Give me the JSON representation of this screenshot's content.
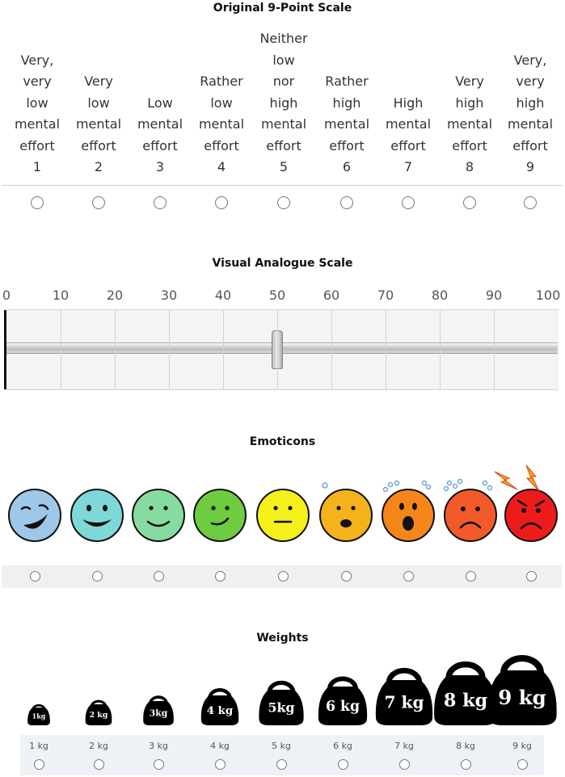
{
  "titles": {
    "scale9": "Original 9-Point Scale",
    "vas": "Visual Analogue Scale",
    "emoticons": "Emoticons",
    "weights": "Weights"
  },
  "scale9": {
    "items": [
      {
        "lines": [
          "Very,",
          "very",
          "low",
          "mental",
          "effort"
        ],
        "number": "1"
      },
      {
        "lines": [
          "Very",
          "low",
          "mental",
          "effort"
        ],
        "number": "2"
      },
      {
        "lines": [
          "Low",
          "mental",
          "effort"
        ],
        "number": "3"
      },
      {
        "lines": [
          "Rather",
          "low",
          "mental",
          "effort"
        ],
        "number": "4"
      },
      {
        "lines": [
          "Neither",
          "low",
          "nor",
          "high",
          "mental",
          "effort"
        ],
        "number": "5"
      },
      {
        "lines": [
          "Rather",
          "high",
          "mental",
          "effort"
        ],
        "number": "6"
      },
      {
        "lines": [
          "High",
          "mental",
          "effort"
        ],
        "number": "7"
      },
      {
        "lines": [
          "Very",
          "high",
          "mental",
          "effort"
        ],
        "number": "8"
      },
      {
        "lines": [
          "Very,",
          "very",
          "high",
          "mental",
          "effort"
        ],
        "number": "9"
      }
    ]
  },
  "vas": {
    "ticks": [
      "0",
      "10",
      "20",
      "30",
      "40",
      "50",
      "60",
      "70",
      "80",
      "90",
      "100"
    ],
    "min": 0,
    "max": 100,
    "handle_value": 50
  },
  "emoticons": {
    "faces": [
      {
        "color": "#9fc7ea",
        "mood": "wink-grin"
      },
      {
        "color": "#7fd8d8",
        "mood": "big-smile"
      },
      {
        "color": "#86dca0",
        "mood": "smile"
      },
      {
        "color": "#6dcc3f",
        "mood": "slight-smile"
      },
      {
        "color": "#f5f01a",
        "mood": "neutral"
      },
      {
        "color": "#f5b21a",
        "mood": "worried"
      },
      {
        "color": "#f5861a",
        "mood": "shocked"
      },
      {
        "color": "#f25a2a",
        "mood": "sad"
      },
      {
        "color": "#ee1b1b",
        "mood": "angry"
      }
    ]
  },
  "weights": {
    "items": [
      {
        "icon_text": "1kg",
        "label": "1 kg"
      },
      {
        "icon_text": "2 kg",
        "label": "2 kg"
      },
      {
        "icon_text": "3kg",
        "label": "3 kg"
      },
      {
        "icon_text": "4 kg",
        "label": "4 kg"
      },
      {
        "icon_text": "5kg",
        "label": "5 kg"
      },
      {
        "icon_text": "6 kg",
        "label": "6 kg"
      },
      {
        "icon_text": "7 kg",
        "label": "7 kg"
      },
      {
        "icon_text": "8 kg",
        "label": "8 kg"
      },
      {
        "icon_text": "9 kg",
        "label": "9 kg"
      }
    ]
  }
}
